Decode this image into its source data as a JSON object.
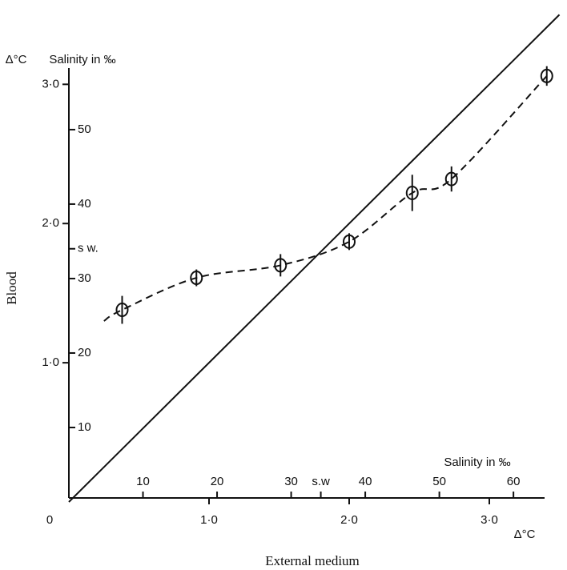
{
  "chart_data": {
    "type": "scatter",
    "x_label": "External medium",
    "y_label": "Blood",
    "x_unit_label": "Δ°C",
    "y_unit_label": "Δ°C",
    "x2_label": "Salinity in ‰",
    "y2_label": "Salinity in ‰",
    "xlim": [
      0,
      3.5
    ],
    "ylim": [
      0,
      3.6
    ],
    "xticks": [
      0,
      {
        "value": 1,
        "label": "1·0"
      },
      {
        "value": 2,
        "label": "2·0"
      },
      {
        "value": 3,
        "label": "3·0"
      }
    ],
    "yticks": [
      {
        "value": 1,
        "label": "1·0"
      },
      {
        "value": 2,
        "label": "2·0"
      },
      {
        "value": 3,
        "label": "3·0"
      }
    ],
    "x2lim": [
      0,
      66.2
    ],
    "x2ticks": [
      10,
      20,
      30,
      {
        "value": 34,
        "label": "s.w"
      },
      40,
      50,
      60
    ],
    "y2lim": [
      0,
      67.3
    ],
    "y2ticks": [
      10,
      20,
      30,
      {
        "value": 34,
        "label": "s w."
      },
      40,
      50
    ],
    "series": [
      {
        "x": [
          0.38,
          0.91,
          1.51,
          2.0,
          2.45,
          2.73,
          3.41
        ],
        "values": [
          1.38,
          1.61,
          1.7,
          1.87,
          2.22,
          2.32,
          3.06
        ],
        "errors": [
          0.06,
          0.02,
          0.04,
          0.02,
          0.09,
          0.05,
          0.03
        ],
        "color": "#111"
      },
      {
        "x": [
          0.25,
          0.38,
          0.91,
          1.51,
          2.0,
          2.45,
          2.73,
          3.41
        ],
        "values": [
          1.3,
          1.38,
          1.61,
          1.7,
          1.87,
          2.22,
          2.32,
          3.06
        ],
        "dashed": true,
        "color": "#111"
      },
      {
        "x": [
          0,
          3.5
        ],
        "values": [
          0,
          3.5
        ],
        "dashed": false,
        "color": "#111"
      }
    ]
  }
}
